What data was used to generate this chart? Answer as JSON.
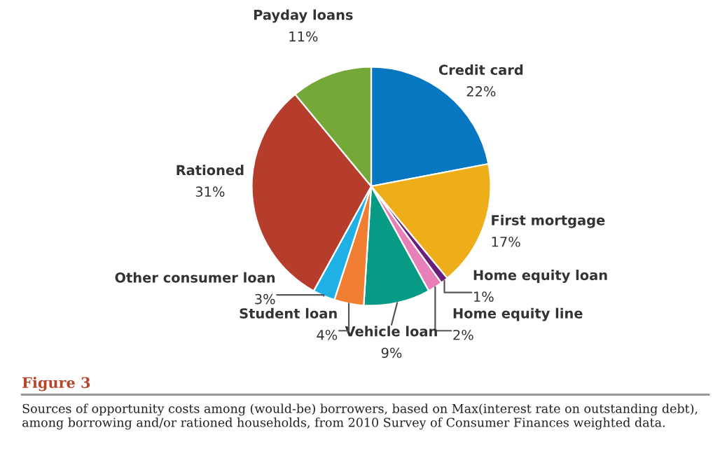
{
  "chart_data": {
    "type": "pie",
    "categories": [
      "Credit card",
      "First mortgage",
      "Home equity loan",
      "Home equity line",
      "Vehicle loan",
      "Student loan",
      "Other consumer loan",
      "Rationed",
      "Payday loans"
    ],
    "values": [
      22,
      17,
      1,
      2,
      9,
      4,
      3,
      31,
      11
    ],
    "colors": [
      "#0677c0",
      "#edae1a",
      "#6a1f7a",
      "#e77fb8",
      "#079a84",
      "#f07f33",
      "#1fb1e6",
      "#b63d2c",
      "#74a93a"
    ],
    "value_labels": [
      "22%",
      "17%",
      "1%",
      "2%",
      "9%",
      "4%",
      "3%",
      "31%",
      "11%"
    ],
    "annotations": [
      "Figure 3",
      "Sources of opportunity costs among (would-be) borrowers, based on Max(interest rate on outstanding debt), among borrowing and/or rationed households, from 2010 Survey of Consumer Finances weighted data."
    ]
  }
}
